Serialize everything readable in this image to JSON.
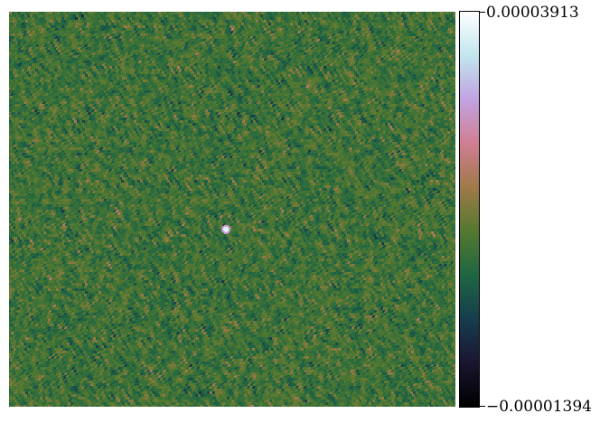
{
  "chart_data": {
    "type": "heatmap",
    "title": "",
    "xlabel": "",
    "ylabel": "",
    "colorbar": {
      "max_label": "0.00003913",
      "min_label": "−0.00001394",
      "vmax": 3.913e-05,
      "vmin": -1.394e-05,
      "colormap": "cubehelix",
      "stops": [
        "#000000",
        "#1a1530",
        "#163d4e",
        "#1f6642",
        "#54792f",
        "#a07949",
        "#d07e93",
        "#c1a3e2",
        "#c1e6ee",
        "#ffffff"
      ]
    },
    "field": {
      "description": "noise",
      "dominant_color": "#2f6a3c",
      "bright_spot": "near center"
    }
  }
}
